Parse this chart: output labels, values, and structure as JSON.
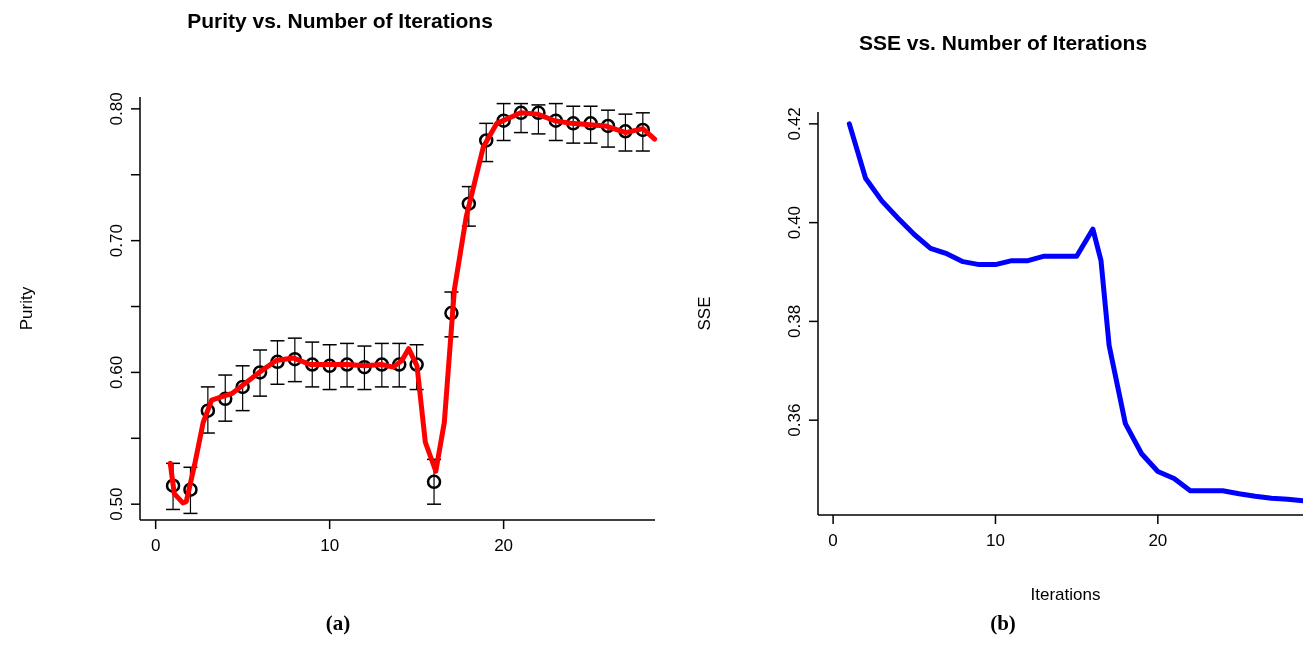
{
  "chart_data": [
    {
      "type": "scatter",
      "title": "Purity vs. Number of Iterations",
      "ylabel": "Purity",
      "annotations": [
        "(a)"
      ],
      "xlim": [
        -0.9,
        28.7
      ],
      "ylim": [
        0.488,
        0.809
      ],
      "xticks": [
        0,
        10,
        20
      ],
      "yticks": [
        {
          "value": 0.5,
          "label": "0.50"
        },
        {
          "value": 0.55,
          "label": null
        },
        {
          "value": 0.6,
          "label": "0.60"
        },
        {
          "value": 0.65,
          "label": null
        },
        {
          "value": 0.7,
          "label": "0.70"
        },
        {
          "value": 0.75,
          "label": null
        },
        {
          "value": 0.8,
          "label": "0.80"
        }
      ],
      "grid": false,
      "series": [
        {
          "marker": "circle",
          "color": "#000000",
          "x": [
            1,
            2,
            3,
            4,
            5,
            6,
            7,
            8,
            9,
            10,
            11,
            12,
            13,
            14,
            15,
            16,
            17,
            18,
            19,
            20,
            21,
            22,
            23,
            24,
            25,
            26,
            27,
            28
          ],
          "values": [
            0.514,
            0.511,
            0.571,
            0.58,
            0.589,
            0.6,
            0.608,
            0.61,
            0.606,
            0.605,
            0.606,
            0.604,
            0.606,
            0.606,
            0.606,
            0.517,
            0.645,
            0.728,
            0.776,
            0.791,
            0.797,
            0.797,
            0.791,
            0.789,
            0.789,
            0.787,
            0.783,
            0.784
          ],
          "errors": [
            [
              0.496,
              0.531
            ],
            [
              0.493,
              0.528
            ],
            [
              0.554,
              0.589
            ],
            [
              0.563,
              0.598
            ],
            [
              0.571,
              0.605
            ],
            [
              0.582,
              0.617
            ],
            [
              0.591,
              0.624
            ],
            [
              0.593,
              0.626
            ],
            [
              0.589,
              0.623
            ],
            [
              0.587,
              0.621
            ],
            [
              0.589,
              0.622
            ],
            [
              0.587,
              0.62
            ],
            [
              0.589,
              0.622
            ],
            [
              0.589,
              0.622
            ],
            [
              0.587,
              0.621
            ],
            [
              0.5,
              0.534
            ],
            [
              0.627,
              0.661
            ],
            [
              0.711,
              0.741
            ],
            [
              0.76,
              0.789
            ],
            [
              0.776,
              0.804
            ],
            [
              0.782,
              0.804
            ],
            [
              0.781,
              0.803
            ],
            [
              0.776,
              0.804
            ],
            [
              0.774,
              0.802
            ],
            [
              0.774,
              0.802
            ],
            [
              0.771,
              0.799
            ],
            [
              0.768,
              0.796
            ],
            [
              0.768,
              0.797
            ]
          ]
        },
        {
          "type": "line",
          "marker": "none",
          "line_style": "solid",
          "color": "#ff0000",
          "x": [
            0.84,
            1.07,
            1.56,
            1.76,
            2.24,
            2.73,
            3.22,
            4.39,
            5.95,
            6.93,
            7.9,
            8.88,
            10.05,
            11.02,
            12,
            12.98,
            13.66,
            14.15,
            14.54,
            15.02,
            15.5,
            16.1,
            16.59,
            17.17,
            17.85,
            18.83,
            19.61,
            20.98,
            21.95,
            22.93,
            23.9,
            25.85,
            27.02,
            28,
            28.68
          ],
          "values": [
            0.531,
            0.508,
            0.501,
            0.502,
            0.53,
            0.562,
            0.579,
            0.584,
            0.6,
            0.609,
            0.611,
            0.606,
            0.606,
            0.606,
            0.605,
            0.606,
            0.604,
            0.609,
            0.618,
            0.605,
            0.547,
            0.525,
            0.562,
            0.663,
            0.718,
            0.771,
            0.789,
            0.797,
            0.796,
            0.791,
            0.789,
            0.787,
            0.782,
            0.785,
            0.777
          ]
        }
      ]
    },
    {
      "type": "line",
      "title": "SSE vs. Number of Iterations",
      "xlabel": "Iterations",
      "ylabel": "SSE",
      "annotations": [
        "(b)"
      ],
      "xlim": [
        -0.93,
        28.94
      ],
      "ylim": [
        0.3408,
        0.4224
      ],
      "xticks": [
        0,
        10,
        20
      ],
      "yticks": [
        0.36,
        0.38,
        {
          "value": 0.4,
          "label": "0.40"
        },
        0.42
      ],
      "grid": false,
      "series": [
        {
          "marker": "none",
          "line_style": "solid",
          "color": "#0000ff",
          "x": [
            1,
            2,
            3,
            4,
            5,
            6,
            7,
            8,
            9,
            10,
            11,
            12,
            13,
            14,
            15,
            16,
            16.5,
            17,
            18,
            19,
            20,
            21,
            22,
            23,
            24,
            25,
            26,
            27,
            28,
            28.94
          ],
          "values": [
            0.42,
            0.409,
            0.4044,
            0.4009,
            0.3976,
            0.3948,
            0.3937,
            0.3921,
            0.3915,
            0.3915,
            0.3923,
            0.3923,
            0.3932,
            0.3932,
            0.3932,
            0.3987,
            0.3923,
            0.3751,
            0.3593,
            0.3532,
            0.3496,
            0.3482,
            0.3457,
            0.3457,
            0.3457,
            0.3451,
            0.3446,
            0.3442,
            0.344,
            0.3437
          ]
        }
      ]
    }
  ]
}
